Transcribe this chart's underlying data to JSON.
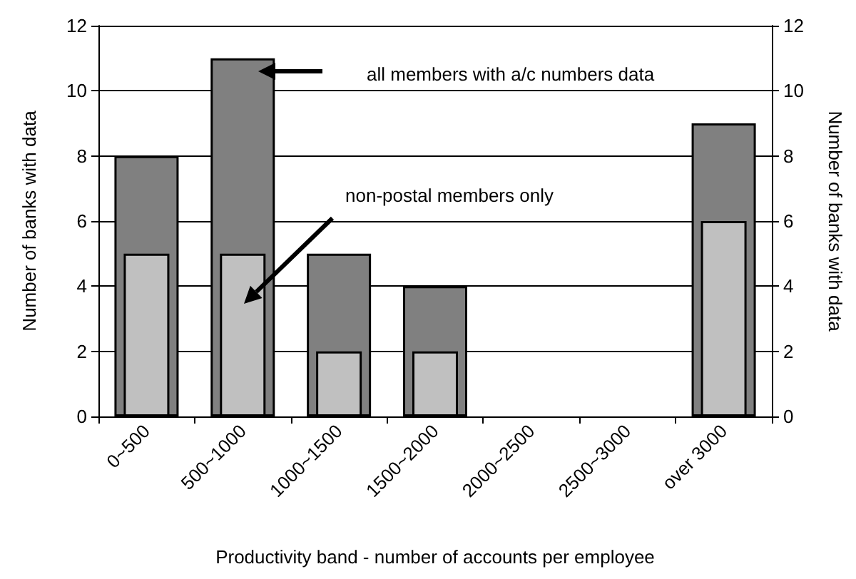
{
  "chart_data": {
    "type": "bar",
    "categories": [
      "0~500",
      "500~1000",
      "1000~1500",
      "1500~2000",
      "2000~2500",
      "2500~3000",
      "over 3000"
    ],
    "series": [
      {
        "name": "all members with a/c numbers data",
        "color": "#808080",
        "values": [
          8,
          11,
          5,
          4,
          0,
          0,
          9
        ]
      },
      {
        "name": "non-postal members only",
        "color": "#c0c0c0",
        "values": [
          5,
          5,
          2,
          2,
          0,
          0,
          6
        ]
      }
    ],
    "xlabel": "Productivity band - number of accounts per employee",
    "ylabel": "Number of banks with data",
    "y2label": "Number of banks with data",
    "ylim": [
      0,
      12
    ],
    "yticks": [
      0,
      2,
      4,
      6,
      8,
      10,
      12
    ],
    "y2lim": [
      0,
      12
    ],
    "y2ticks": [
      0,
      2,
      4,
      6,
      8,
      10,
      12
    ],
    "grid": "y"
  }
}
